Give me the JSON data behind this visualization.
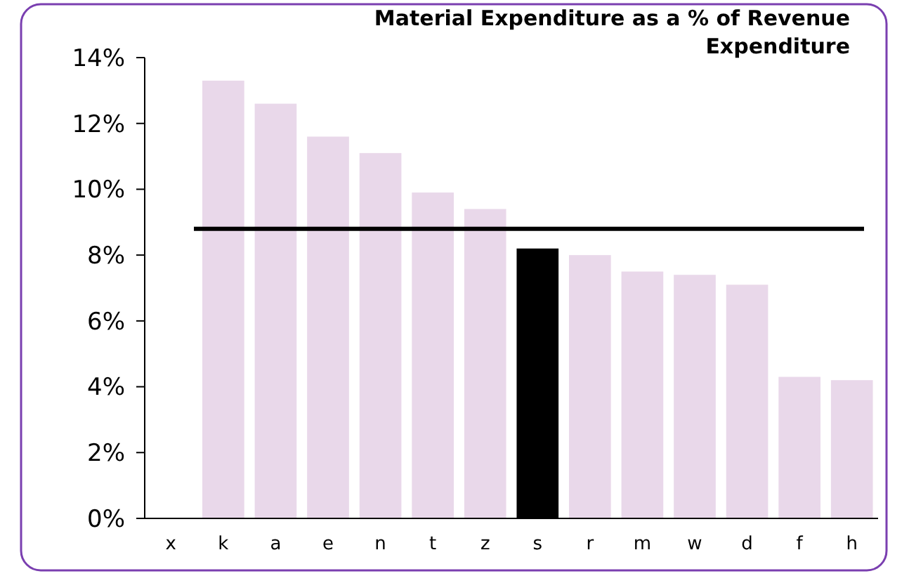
{
  "chart_data": {
    "type": "bar",
    "title": "Material Expenditure as a % of Revenue Expenditure",
    "categories": [
      "x",
      "k",
      "a",
      "e",
      "n",
      "t",
      "z",
      "s",
      "r",
      "m",
      "w",
      "d",
      "f",
      "h"
    ],
    "values": [
      null,
      13.3,
      12.6,
      11.6,
      11.1,
      9.9,
      9.4,
      8.2,
      8.0,
      7.5,
      7.4,
      7.1,
      4.3,
      4.2
    ],
    "colors": [
      null,
      "#e9d8ea",
      "#e9d8ea",
      "#e9d8ea",
      "#e9d8ea",
      "#e9d8ea",
      "#e9d8ea",
      "#000000",
      "#e9d8ea",
      "#e9d8ea",
      "#e9d8ea",
      "#e9d8ea",
      "#e9d8ea",
      "#e9d8ea"
    ],
    "ylim": [
      0,
      14
    ],
    "yticks": [
      {
        "value": 0,
        "label": "0%"
      },
      {
        "value": 2,
        "label": "2%"
      },
      {
        "value": 4,
        "label": "4%"
      },
      {
        "value": 6,
        "label": "6%"
      },
      {
        "value": 8,
        "label": "8%"
      },
      {
        "value": 10,
        "label": "10%"
      },
      {
        "value": 12,
        "label": "12%"
      },
      {
        "value": 14,
        "label": "14%"
      }
    ],
    "ref_lines": [
      {
        "axis": "y",
        "value": 8.8,
        "color": "#000000"
      }
    ],
    "grid": false
  }
}
